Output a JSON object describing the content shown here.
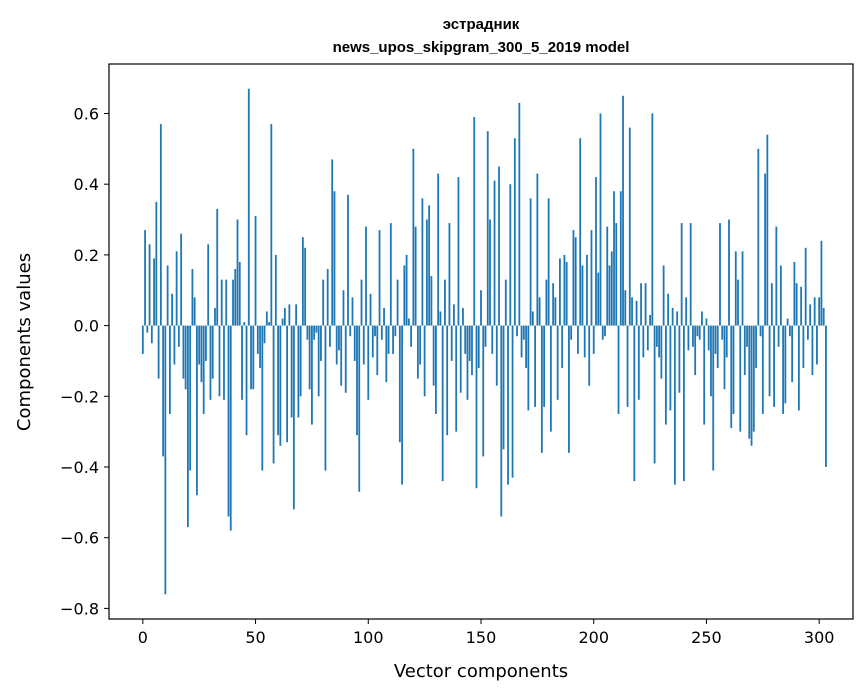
{
  "chart_data": {
    "type": "bar",
    "title_line1": "эстрадник",
    "title_line2": "news_upos_skipgram_300_5_2019 model",
    "xlabel": "Vector components",
    "ylabel": "Components values",
    "xlim": [
      -15,
      315
    ],
    "ylim": [
      -0.83,
      0.74
    ],
    "xticks": [
      0,
      50,
      100,
      150,
      200,
      250,
      300
    ],
    "xtick_labels": [
      "0",
      "50",
      "100",
      "150",
      "200",
      "250",
      "300"
    ],
    "yticks": [
      -0.8,
      -0.6,
      -0.4,
      -0.2,
      0.0,
      0.2,
      0.4,
      0.6
    ],
    "ytick_labels": [
      "−0.8",
      "−0.6",
      "−0.4",
      "−0.2",
      "0.0",
      "0.2",
      "0.4",
      "0.6"
    ],
    "bar_color": "#1f77b4",
    "values": [
      -0.08,
      0.27,
      -0.02,
      0.23,
      -0.05,
      0.19,
      0.35,
      -0.15,
      0.57,
      -0.37,
      -0.76,
      0.17,
      -0.25,
      0.09,
      -0.11,
      0.21,
      -0.06,
      0.26,
      -0.15,
      -0.18,
      -0.57,
      -0.41,
      0.16,
      0.08,
      -0.48,
      -0.11,
      -0.16,
      -0.25,
      -0.1,
      0.23,
      -0.21,
      -0.15,
      0.05,
      0.33,
      -0.2,
      0.13,
      -0.21,
      0.13,
      -0.54,
      -0.58,
      0.13,
      0.16,
      0.3,
      0.18,
      -0.21,
      0.01,
      -0.31,
      0.67,
      -0.18,
      -0.18,
      0.31,
      -0.08,
      -0.12,
      -0.41,
      -0.05,
      0.04,
      0.01,
      0.57,
      -0.39,
      0.2,
      -0.31,
      -0.34,
      0.02,
      0.05,
      -0.33,
      0.06,
      -0.26,
      -0.52,
      0.06,
      -0.26,
      -0.2,
      0.25,
      0.22,
      -0.04,
      -0.18,
      -0.28,
      -0.04,
      -0.02,
      -0.2,
      -0.1,
      0.13,
      -0.41,
      0.16,
      -0.06,
      0.47,
      0.38,
      -0.11,
      -0.07,
      -0.17,
      0.1,
      -0.19,
      0.37,
      -0.03,
      0.08,
      -0.1,
      -0.31,
      -0.47,
      0.13,
      -0.11,
      0.28,
      -0.21,
      0.09,
      -0.09,
      -0.03,
      -0.14,
      0.27,
      -0.04,
      0.05,
      -0.16,
      -0.08,
      0.29,
      -0.08,
      -0.03,
      0.13,
      -0.33,
      -0.45,
      0.17,
      0.2,
      0.02,
      -0.06,
      0.5,
      0.28,
      -0.15,
      -0.11,
      0.36,
      -0.2,
      0.3,
      0.34,
      0.14,
      -0.17,
      -0.25,
      0.43,
      0.04,
      -0.44,
      0.13,
      -0.31,
      0.29,
      -0.1,
      0.06,
      -0.3,
      0.42,
      -0.19,
      0.05,
      -0.08,
      -0.21,
      -0.1,
      -0.14,
      0.59,
      -0.46,
      -0.12,
      0.1,
      -0.37,
      -0.06,
      0.55,
      0.3,
      -0.08,
      0.41,
      -0.17,
      0.45,
      -0.54,
      -0.35,
      0.13,
      -0.45,
      0.4,
      -0.43,
      0.53,
      -0.03,
      0.63,
      -0.09,
      -0.04,
      -0.12,
      -0.24,
      0.36,
      0.04,
      -0.23,
      0.43,
      0.08,
      -0.36,
      -0.23,
      0.13,
      0.36,
      -0.3,
      0.12,
      0.08,
      -0.21,
      0.19,
      -0.12,
      0.2,
      0.18,
      -0.36,
      -0.04,
      0.27,
      0.25,
      -0.08,
      0.53,
      0.17,
      -0.09,
      0.2,
      -0.17,
      0.27,
      -0.08,
      0.42,
      0.15,
      0.6,
      -0.04,
      -0.03,
      0.28,
      0.17,
      0.21,
      0.38,
      0.29,
      -0.25,
      0.38,
      0.65,
      0.1,
      -0.23,
      0.56,
      0.08,
      -0.44,
      0.07,
      -0.21,
      0.12,
      -0.09,
      0.12,
      -0.07,
      0.03,
      0.6,
      -0.39,
      -0.06,
      -0.09,
      -0.15,
      0.17,
      -0.28,
      0.09,
      -0.24,
      0.05,
      -0.45,
      0.04,
      -0.19,
      0.29,
      -0.44,
      0.08,
      -0.07,
      0.29,
      -0.06,
      -0.14,
      -0.03,
      -0.04,
      0.04,
      -0.28,
      0.02,
      -0.07,
      -0.2,
      -0.41,
      -0.08,
      -0.12,
      0.29,
      -0.04,
      -0.18,
      -0.09,
      0.3,
      -0.29,
      -0.25,
      0.21,
      0.13,
      -0.3,
      0.21,
      -0.14,
      -0.06,
      -0.32,
      -0.34,
      -0.3,
      -0.12,
      0.5,
      -0.03,
      -0.25,
      0.43,
      0.54,
      -0.2,
      0.12,
      -0.23,
      0.28,
      -0.06,
      0.17,
      -0.25,
      -0.22,
      0.02,
      -0.03,
      -0.16,
      0.18,
      0.12,
      -0.24,
      0.11,
      -0.12,
      0.22,
      -0.04,
      0.06,
      -0.14,
      0.08,
      -0.11,
      0.08,
      0.24,
      0.05,
      -0.4
    ]
  }
}
